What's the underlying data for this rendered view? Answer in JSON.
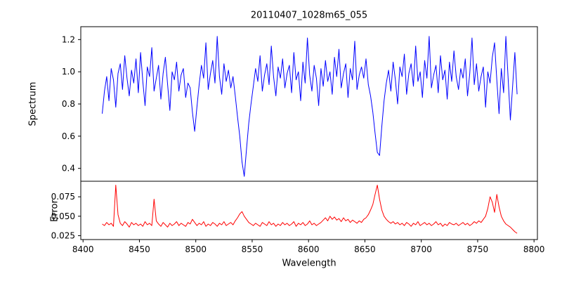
{
  "figure": {
    "background": "#ffffff"
  },
  "chart_data": [
    {
      "type": "line",
      "title": "20110407_1028m65_055",
      "ylabel": "Spectrum",
      "color": "#0000ff",
      "xlim": [
        8398,
        8803
      ],
      "ylim": [
        0.32,
        1.28
      ],
      "yticks": [
        0.4,
        0.6,
        0.8,
        1.0,
        1.2
      ],
      "ytick_labels": [
        "0.4",
        "0.6",
        "0.8",
        "1.0",
        "1.2"
      ],
      "x_start": 8417,
      "x_step": 2,
      "values": [
        0.74,
        0.88,
        0.97,
        0.82,
        1.02,
        0.95,
        0.78,
        0.99,
        1.05,
        0.89,
        1.1,
        0.96,
        0.85,
        1.01,
        0.93,
        1.08,
        0.87,
        1.12,
        0.94,
        0.79,
        1.03,
        0.97,
        1.15,
        0.88,
        0.96,
        1.04,
        0.83,
        0.99,
        1.09,
        0.92,
        0.76,
        1.0,
        0.95,
        1.06,
        0.88,
        0.98,
        1.02,
        0.84,
        0.93,
        0.9,
        0.75,
        0.63,
        0.78,
        0.92,
        1.04,
        0.96,
        1.18,
        0.89,
        0.99,
        1.07,
        0.93,
        1.22,
        0.97,
        0.86,
        1.05,
        0.94,
        1.01,
        0.9,
        0.97,
        0.85,
        0.72,
        0.6,
        0.44,
        0.35,
        0.52,
        0.68,
        0.8,
        0.91,
        1.02,
        0.94,
        1.1,
        0.88,
        0.98,
        1.05,
        0.92,
        1.16,
        0.97,
        0.85,
        1.03,
        0.96,
        1.08,
        0.9,
        0.99,
        1.04,
        0.87,
        1.12,
        0.95,
        1.0,
        0.82,
        1.06,
        0.93,
        1.21,
        0.98,
        0.88,
        1.04,
        0.96,
        0.79,
        1.02,
        0.91,
        1.07,
        0.94,
        1.0,
        0.86,
        1.09,
        0.97,
        1.14,
        0.9,
        0.99,
        1.05,
        0.84,
        1.02,
        0.95,
        1.19,
        0.89,
        0.98,
        1.03,
        0.96,
        1.08,
        0.92,
        0.85,
        0.75,
        0.62,
        0.5,
        0.48,
        0.66,
        0.82,
        0.93,
        1.01,
        0.88,
        1.06,
        0.95,
        0.8,
        1.03,
        0.97,
        1.11,
        0.86,
        0.99,
        1.05,
        0.91,
        1.16,
        0.94,
        1.0,
        0.84,
        1.07,
        0.96,
        1.22,
        0.9,
        0.98,
        1.04,
        0.87,
        1.1,
        0.95,
        1.01,
        0.83,
        1.06,
        0.94,
        1.13,
        0.97,
        0.89,
        1.02,
        0.96,
        1.08,
        0.85,
        0.99,
        1.21,
        0.92,
        1.05,
        0.88,
        0.97,
        1.03,
        0.78,
        1.0,
        0.93,
        1.09,
        1.18,
        0.95,
        0.74,
        1.02,
        0.87,
        1.22,
        0.96,
        0.7,
        0.91,
        1.12,
        0.86
      ]
    },
    {
      "type": "line",
      "ylabel": "Error",
      "xlabel": "Wavelength",
      "color": "#ff0000",
      "xlim": [
        8398,
        8803
      ],
      "ylim": [
        0.02,
        0.095
      ],
      "yticks": [
        0.025,
        0.05,
        0.075
      ],
      "ytick_labels": [
        "0.025",
        "0.050",
        "0.075"
      ],
      "xticks": [
        8400,
        8450,
        8500,
        8550,
        8600,
        8650,
        8700,
        8750,
        8800
      ],
      "xtick_labels": [
        "8400",
        "8450",
        "8500",
        "8550",
        "8600",
        "8650",
        "8700",
        "8750",
        "8800"
      ],
      "x_start": 8417,
      "x_step": 2,
      "values": [
        0.04,
        0.038,
        0.042,
        0.039,
        0.041,
        0.037,
        0.09,
        0.052,
        0.041,
        0.038,
        0.043,
        0.04,
        0.036,
        0.042,
        0.039,
        0.041,
        0.038,
        0.04,
        0.037,
        0.043,
        0.039,
        0.041,
        0.038,
        0.072,
        0.044,
        0.04,
        0.037,
        0.042,
        0.039,
        0.036,
        0.041,
        0.038,
        0.04,
        0.043,
        0.038,
        0.041,
        0.039,
        0.037,
        0.042,
        0.04,
        0.046,
        0.042,
        0.038,
        0.041,
        0.039,
        0.043,
        0.037,
        0.04,
        0.038,
        0.042,
        0.04,
        0.037,
        0.041,
        0.039,
        0.043,
        0.038,
        0.04,
        0.042,
        0.039,
        0.044,
        0.048,
        0.053,
        0.056,
        0.05,
        0.046,
        0.042,
        0.04,
        0.038,
        0.041,
        0.039,
        0.037,
        0.042,
        0.04,
        0.038,
        0.043,
        0.039,
        0.041,
        0.037,
        0.04,
        0.038,
        0.042,
        0.039,
        0.041,
        0.038,
        0.04,
        0.043,
        0.037,
        0.041,
        0.039,
        0.042,
        0.038,
        0.04,
        0.044,
        0.039,
        0.041,
        0.038,
        0.04,
        0.042,
        0.045,
        0.048,
        0.044,
        0.05,
        0.046,
        0.049,
        0.045,
        0.047,
        0.043,
        0.048,
        0.044,
        0.046,
        0.042,
        0.045,
        0.043,
        0.041,
        0.044,
        0.042,
        0.046,
        0.048,
        0.052,
        0.058,
        0.065,
        0.078,
        0.09,
        0.072,
        0.058,
        0.05,
        0.046,
        0.043,
        0.041,
        0.043,
        0.04,
        0.042,
        0.039,
        0.041,
        0.038,
        0.042,
        0.04,
        0.037,
        0.041,
        0.039,
        0.043,
        0.038,
        0.04,
        0.042,
        0.039,
        0.041,
        0.038,
        0.04,
        0.043,
        0.039,
        0.041,
        0.037,
        0.04,
        0.038,
        0.042,
        0.04,
        0.039,
        0.041,
        0.038,
        0.04,
        0.042,
        0.039,
        0.041,
        0.038,
        0.04,
        0.043,
        0.041,
        0.044,
        0.042,
        0.046,
        0.05,
        0.06,
        0.075,
        0.068,
        0.055,
        0.078,
        0.062,
        0.05,
        0.044,
        0.04,
        0.038,
        0.036,
        0.033,
        0.03,
        0.028
      ]
    }
  ]
}
